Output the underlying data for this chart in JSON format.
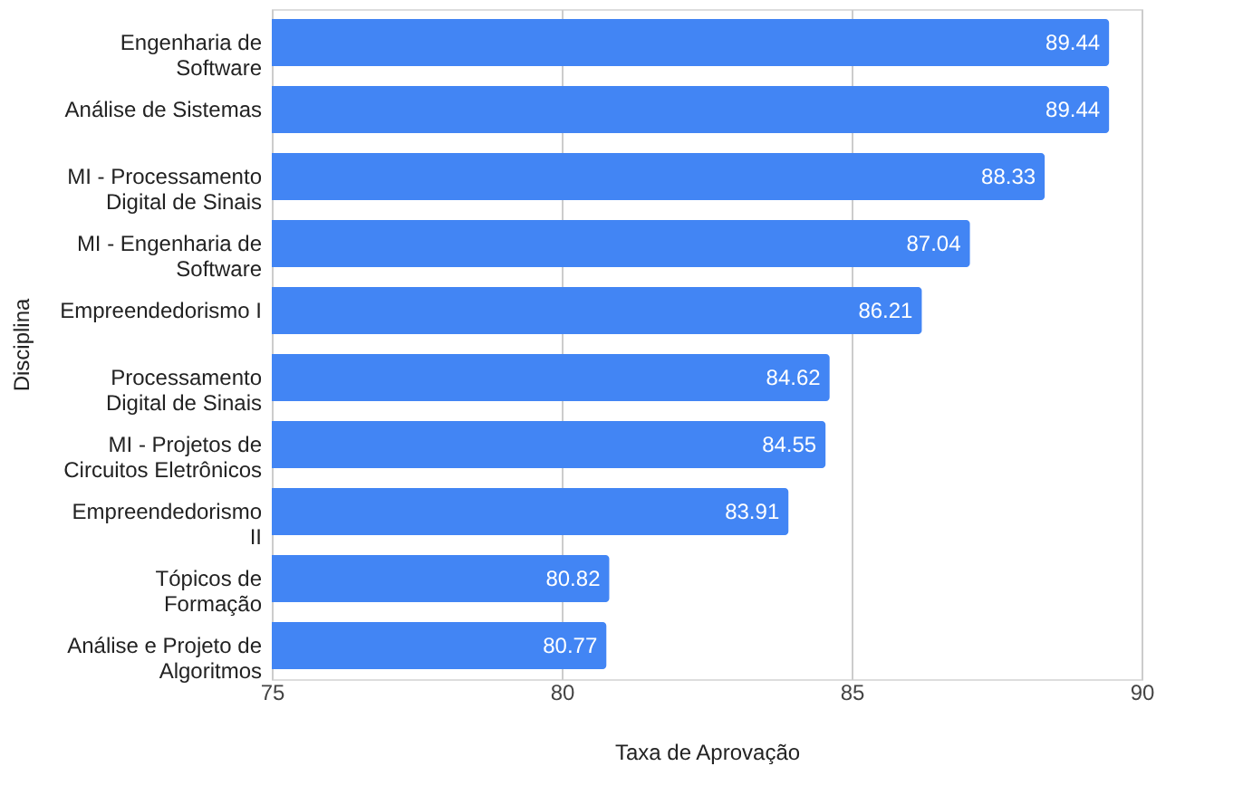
{
  "chart_data": {
    "type": "bar",
    "orientation": "horizontal",
    "xlabel": "Taxa de Aprovação",
    "ylabel": "Disciplina",
    "categories": [
      "Engenharia de\nSoftware",
      "Análise de Sistemas",
      "MI - Processamento\nDigital de Sinais",
      "MI - Engenharia de\nSoftware",
      "Empreendedorismo I",
      "Processamento\nDigital de Sinais",
      "MI - Projetos de\nCircuitos Eletrônicos",
      "Empreendedorismo\nII",
      "Tópicos de\nFormação",
      "Análise e Projeto de\nAlgoritmos"
    ],
    "values": [
      89.44,
      89.44,
      88.33,
      87.04,
      86.21,
      84.62,
      84.55,
      83.91,
      80.82,
      80.77
    ],
    "color": "#4285f4",
    "xlim": [
      75,
      90
    ],
    "xticks": [
      75,
      80,
      85,
      90
    ],
    "grid": "x",
    "data_labels": true
  }
}
